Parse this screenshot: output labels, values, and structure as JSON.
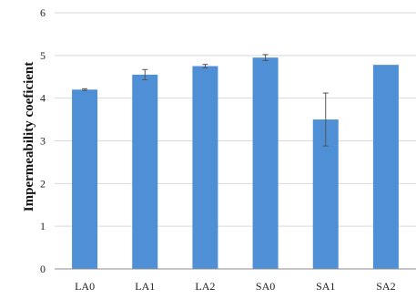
{
  "chart_data": {
    "type": "bar",
    "title": "",
    "xlabel": "",
    "ylabel": "Impermeability coeficient",
    "categories": [
      "LA0",
      "LA1",
      "LA2",
      "SA0",
      "SA1",
      "SA2"
    ],
    "series": [
      {
        "values": [
          4.2,
          4.55,
          4.75,
          4.95,
          3.5,
          4.78
        ],
        "errors": [
          0.02,
          0.12,
          0.04,
          0.07,
          0.62,
          0.0
        ]
      }
    ],
    "ylim": [
      0,
      6
    ],
    "yticks": [
      "0",
      "1",
      "2",
      "3",
      "4",
      "5",
      "6"
    ],
    "grid": true,
    "legend": "none",
    "colors": {
      "bar": "#4e8fd6",
      "grid": "#d9d9d9",
      "axis": "#8c8c8c",
      "error": "#555555"
    }
  }
}
